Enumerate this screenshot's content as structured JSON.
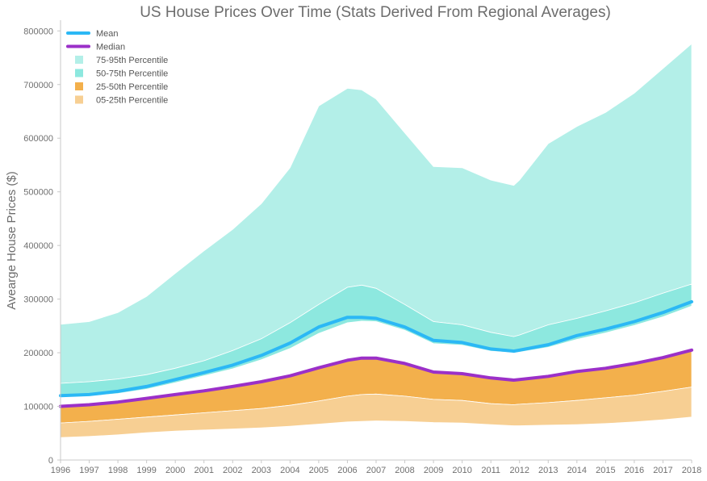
{
  "chart_data": {
    "type": "area",
    "title": "US House Prices Over Time (Stats Derived From Regional Averages)",
    "xlabel": "",
    "ylabel": "Avearge House Prices ($)",
    "xlim": [
      1996,
      2018
    ],
    "ylim": [
      0,
      820000
    ],
    "x_ticks": [
      "1996",
      "1997",
      "1998",
      "1999",
      "2000",
      "2001",
      "2002",
      "2003",
      "2004",
      "2005",
      "2006",
      "2007",
      "2008",
      "2009",
      "2010",
      "2011",
      "2012",
      "2013",
      "2014",
      "2015",
      "2016",
      "2017",
      "2018"
    ],
    "y_ticks": [
      "0",
      "100000",
      "200000",
      "300000",
      "400000",
      "500000",
      "600000",
      "700000",
      "800000"
    ],
    "grid": false,
    "legend_position": "top-left",
    "x": [
      1996,
      1997,
      1998,
      1999,
      2000,
      2001,
      2002,
      2003,
      2004,
      2005,
      2006,
      2006.5,
      2007,
      2008,
      2009,
      2010,
      2011,
      2011.8,
      2012,
      2013,
      2014,
      2015,
      2016,
      2017,
      2018
    ],
    "series": [
      {
        "name": "Mean",
        "kind": "line",
        "color": "#2bb8f5",
        "values": [
          120000,
          122000,
          128000,
          137000,
          150000,
          163000,
          177000,
          195000,
          218000,
          248000,
          266000,
          266000,
          264000,
          248000,
          223000,
          219000,
          207000,
          203000,
          205000,
          215000,
          232000,
          244000,
          258000,
          275000,
          295000
        ]
      },
      {
        "name": "Median",
        "kind": "line",
        "color": "#9b30c8",
        "values": [
          100000,
          103000,
          108000,
          115000,
          122000,
          129000,
          137000,
          146000,
          157000,
          172000,
          186000,
          190000,
          190000,
          180000,
          164000,
          161000,
          153000,
          149000,
          150000,
          156000,
          165000,
          171000,
          180000,
          191000,
          205000
        ]
      },
      {
        "name": "75-95th Percentile",
        "kind": "band",
        "color": "#b3efe8",
        "lower": [
          143000,
          146000,
          151000,
          159000,
          171000,
          185000,
          204000,
          226000,
          256000,
          290000,
          322000,
          326000,
          320000,
          290000,
          258000,
          252000,
          238000,
          230000,
          233000,
          252000,
          264000,
          278000,
          293000,
          311000,
          328000
        ],
        "upper": [
          253000,
          258000,
          275000,
          305000,
          348000,
          390000,
          430000,
          478000,
          545000,
          660000,
          693000,
          690000,
          673000,
          610000,
          547000,
          545000,
          522000,
          512000,
          522000,
          590000,
          622000,
          648000,
          684000,
          730000,
          776000
        ]
      },
      {
        "name": "50-75th Percentile",
        "kind": "band",
        "color": "#8de8df",
        "lower": [
          117000,
          119000,
          124000,
          132000,
          144000,
          157000,
          170000,
          187000,
          208000,
          236000,
          256000,
          259000,
          258000,
          242000,
          217000,
          214000,
          203000,
          200000,
          201000,
          210000,
          225000,
          237000,
          251000,
          267000,
          287000
        ],
        "upper": [
          143000,
          146000,
          151000,
          159000,
          171000,
          185000,
          204000,
          226000,
          256000,
          290000,
          322000,
          326000,
          320000,
          290000,
          258000,
          252000,
          238000,
          230000,
          233000,
          252000,
          264000,
          278000,
          293000,
          311000,
          328000
        ]
      },
      {
        "name": "25-50th Percentile",
        "kind": "band",
        "color": "#f3b04c",
        "lower": [
          69000,
          72000,
          76000,
          80000,
          84000,
          88000,
          92000,
          96000,
          102000,
          110000,
          119000,
          122000,
          123000,
          119000,
          113000,
          111000,
          105000,
          103000,
          104000,
          107000,
          111000,
          116000,
          121000,
          128000,
          136000
        ],
        "upper": [
          100000,
          103000,
          108000,
          115000,
          122000,
          129000,
          137000,
          146000,
          157000,
          172000,
          186000,
          190000,
          190000,
          180000,
          164000,
          161000,
          153000,
          149000,
          150000,
          156000,
          165000,
          171000,
          180000,
          191000,
          205000
        ]
      },
      {
        "name": "05-25th Percentile",
        "kind": "band",
        "color": "#f7cf93",
        "lower": [
          42000,
          44000,
          47000,
          51000,
          54000,
          56000,
          58000,
          60000,
          63000,
          67000,
          71000,
          72000,
          73000,
          72000,
          70000,
          69000,
          66000,
          64000,
          64000,
          65000,
          66000,
          68000,
          71000,
          75000,
          80000
        ],
        "upper": [
          69000,
          72000,
          76000,
          80000,
          84000,
          88000,
          92000,
          96000,
          102000,
          110000,
          119000,
          122000,
          123000,
          119000,
          113000,
          111000,
          105000,
          103000,
          104000,
          107000,
          111000,
          116000,
          121000,
          128000,
          136000
        ]
      }
    ]
  }
}
